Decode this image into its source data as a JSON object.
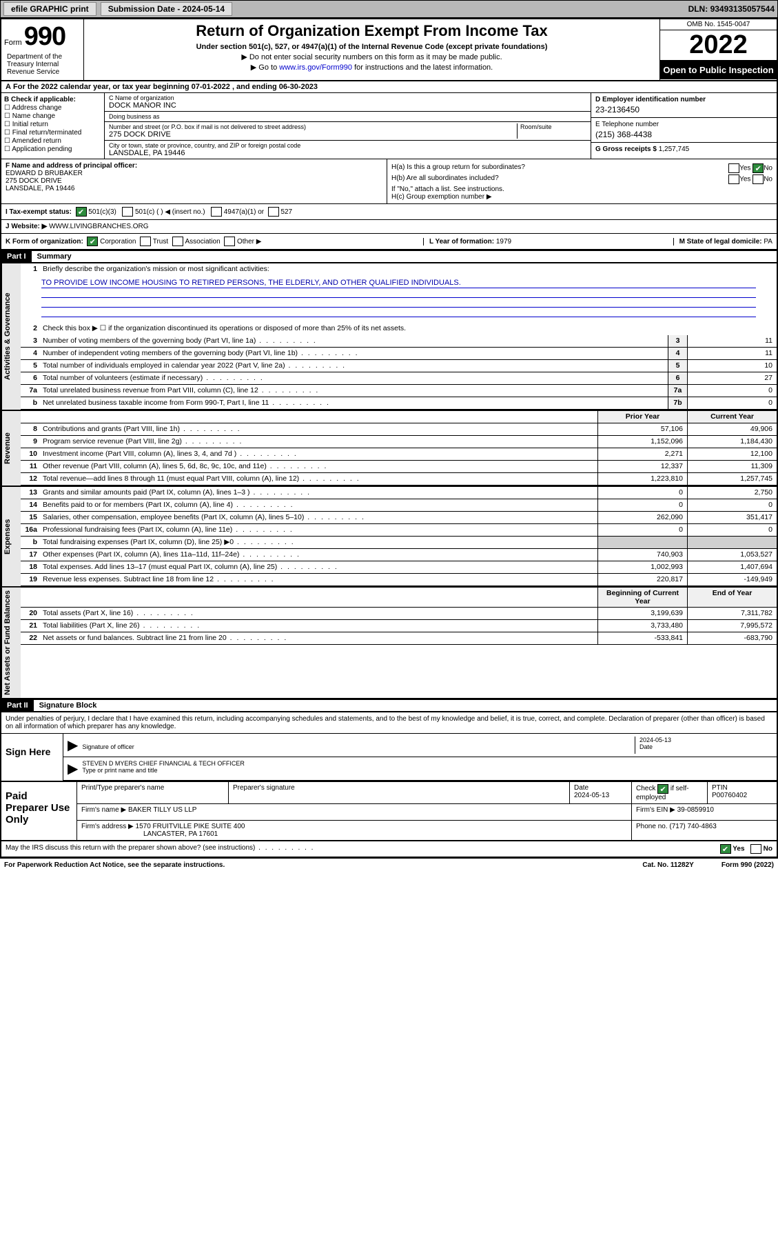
{
  "topbar": {
    "efile": "efile GRAPHIC print",
    "sub_label": "Submission Date - ",
    "sub_date": "2024-05-14",
    "dln_label": "DLN: ",
    "dln": "93493135057544"
  },
  "header": {
    "form_word": "Form",
    "form_num": "990",
    "title": "Return of Organization Exempt From Income Tax",
    "subtitle": "Under section 501(c), 527, or 4947(a)(1) of the Internal Revenue Code (except private foundations)",
    "note1": "Do not enter social security numbers on this form as it may be made public.",
    "note2_pre": "Go to ",
    "note2_link": "www.irs.gov/Form990",
    "note2_post": " for instructions and the latest information.",
    "omb": "OMB No. 1545-0047",
    "year": "2022",
    "open": "Open to Public Inspection",
    "dept": "Department of the Treasury Internal Revenue Service"
  },
  "rowA": "For the 2022 calendar year, or tax year beginning 07-01-2022   , and ending 06-30-2023",
  "checkB": {
    "title": "B Check if applicable:",
    "items": [
      "Address change",
      "Name change",
      "Initial return",
      "Final return/terminated",
      "Amended return",
      "Application pending"
    ]
  },
  "colC": {
    "name_label": "C Name of organization",
    "name": "DOCK MANOR INC",
    "dba_label": "Doing business as",
    "dba": "",
    "street_label": "Number and street (or P.O. box if mail is not delivered to street address)",
    "room_label": "Room/suite",
    "street": "275 DOCK DRIVE",
    "city_label": "City or town, state or province, country, and ZIP or foreign postal code",
    "city": "LANSDALE, PA  19446"
  },
  "colD": {
    "d_label": "D Employer identification number",
    "d_val": "23-2136450",
    "e_label": "E Telephone number",
    "e_val": "(215) 368-4438",
    "g_label": "G Gross receipts $ ",
    "g_val": "1,257,745"
  },
  "rowF": {
    "label": "F Name and address of principal officer:",
    "name": "EDWARD D BRUBAKER",
    "addr1": "275 DOCK DRIVE",
    "addr2": "LANSDALE, PA  19446"
  },
  "rowH": {
    "ha": "H(a)  Is this a group return for subordinates?",
    "hb": "H(b)  Are all subordinates included?",
    "hb_note": "If \"No,\" attach a list. See instructions.",
    "hc": "H(c)  Group exemption number ▶",
    "yes": "Yes",
    "no": "No"
  },
  "rowI": {
    "label": "I   Tax-exempt status:",
    "opt1": "501(c)(3)",
    "opt2": "501(c) (  ) ◀ (insert no.)",
    "opt3": "4947(a)(1) or",
    "opt4": "527"
  },
  "rowJ": {
    "label": "J   Website: ▶",
    "val": "WWW.LIVINGBRANCHES.ORG"
  },
  "rowK": {
    "label": "K Form of organization:",
    "corp": "Corporation",
    "trust": "Trust",
    "assoc": "Association",
    "other": "Other ▶",
    "l_label": "L Year of formation: ",
    "l_val": "1979",
    "m_label": "M State of legal domicile: ",
    "m_val": "PA"
  },
  "part1": {
    "hdr": "Part I",
    "title": "Summary",
    "q1": "Briefly describe the organization's mission or most significant activities:",
    "mission": "TO PROVIDE LOW INCOME HOUSING TO RETIRED PERSONS, THE ELDERLY, AND OTHER QUALIFIED INDIVIDUALS.",
    "q2": "Check this box ▶ ☐  if the organization discontinued its operations or disposed of more than 25% of its net assets.",
    "rows_gov": [
      {
        "n": "3",
        "d": "Number of voting members of the governing body (Part VI, line 1a)",
        "b": "3",
        "v": "11"
      },
      {
        "n": "4",
        "d": "Number of independent voting members of the governing body (Part VI, line 1b)",
        "b": "4",
        "v": "11"
      },
      {
        "n": "5",
        "d": "Total number of individuals employed in calendar year 2022 (Part V, line 2a)",
        "b": "5",
        "v": "10"
      },
      {
        "n": "6",
        "d": "Total number of volunteers (estimate if necessary)",
        "b": "6",
        "v": "27"
      },
      {
        "n": "7a",
        "d": "Total unrelated business revenue from Part VIII, column (C), line 12",
        "b": "7a",
        "v": "0"
      },
      {
        "n": "b",
        "d": "Net unrelated business taxable income from Form 990-T, Part I, line 11",
        "b": "7b",
        "v": "0"
      }
    ],
    "col_hdr_prior": "Prior Year",
    "col_hdr_curr": "Current Year",
    "rows_rev": [
      {
        "n": "8",
        "d": "Contributions and grants (Part VIII, line 1h)",
        "p": "57,106",
        "c": "49,906"
      },
      {
        "n": "9",
        "d": "Program service revenue (Part VIII, line 2g)",
        "p": "1,152,096",
        "c": "1,184,430"
      },
      {
        "n": "10",
        "d": "Investment income (Part VIII, column (A), lines 3, 4, and 7d )",
        "p": "2,271",
        "c": "12,100"
      },
      {
        "n": "11",
        "d": "Other revenue (Part VIII, column (A), lines 5, 6d, 8c, 9c, 10c, and 11e)",
        "p": "12,337",
        "c": "11,309"
      },
      {
        "n": "12",
        "d": "Total revenue—add lines 8 through 11 (must equal Part VIII, column (A), line 12)",
        "p": "1,223,810",
        "c": "1,257,745"
      }
    ],
    "rows_exp": [
      {
        "n": "13",
        "d": "Grants and similar amounts paid (Part IX, column (A), lines 1–3 )",
        "p": "0",
        "c": "2,750"
      },
      {
        "n": "14",
        "d": "Benefits paid to or for members (Part IX, column (A), line 4)",
        "p": "0",
        "c": "0"
      },
      {
        "n": "15",
        "d": "Salaries, other compensation, employee benefits (Part IX, column (A), lines 5–10)",
        "p": "262,090",
        "c": "351,417"
      },
      {
        "n": "16a",
        "d": "Professional fundraising fees (Part IX, column (A), line 11e)",
        "p": "0",
        "c": "0"
      },
      {
        "n": "b",
        "d": "Total fundraising expenses (Part IX, column (D), line 25) ▶0",
        "p": "",
        "c": "",
        "shaded": true
      },
      {
        "n": "17",
        "d": "Other expenses (Part IX, column (A), lines 11a–11d, 11f–24e)",
        "p": "740,903",
        "c": "1,053,527"
      },
      {
        "n": "18",
        "d": "Total expenses. Add lines 13–17 (must equal Part IX, column (A), line 25)",
        "p": "1,002,993",
        "c": "1,407,694"
      },
      {
        "n": "19",
        "d": "Revenue less expenses. Subtract line 18 from line 12",
        "p": "220,817",
        "c": "-149,949"
      }
    ],
    "col_hdr_beg": "Beginning of Current Year",
    "col_hdr_end": "End of Year",
    "rows_net": [
      {
        "n": "20",
        "d": "Total assets (Part X, line 16)",
        "p": "3,199,639",
        "c": "7,311,782"
      },
      {
        "n": "21",
        "d": "Total liabilities (Part X, line 26)",
        "p": "3,733,480",
        "c": "7,995,572"
      },
      {
        "n": "22",
        "d": "Net assets or fund balances. Subtract line 21 from line 20",
        "p": "-533,841",
        "c": "-683,790"
      }
    ],
    "side_gov": "Activities & Governance",
    "side_rev": "Revenue",
    "side_exp": "Expenses",
    "side_net": "Net Assets or Fund Balances"
  },
  "part2": {
    "hdr": "Part II",
    "title": "Signature Block",
    "decl": "Under penalties of perjury, I declare that I have examined this return, including accompanying schedules and statements, and to the best of my knowledge and belief, it is true, correct, and complete. Declaration of preparer (other than officer) is based on all information of which preparer has any knowledge.",
    "sign_here": "Sign Here",
    "sig_officer": "Signature of officer",
    "sig_date": "2024-05-13",
    "date_lbl": "Date",
    "officer_name": "STEVEN D MYERS CHIEF FINANCIAL & TECH OFFICER",
    "type_name": "Type or print name and title",
    "paid_prep": "Paid Preparer Use Only",
    "prep_name_lbl": "Print/Type preparer's name",
    "prep_sig_lbl": "Preparer's signature",
    "prep_date_lbl": "Date",
    "prep_date": "2024-05-13",
    "check_self": "Check ☑ if self-employed",
    "ptin_lbl": "PTIN",
    "ptin": "P00760402",
    "firm_name_lbl": "Firm's name    ▶",
    "firm_name": "BAKER TILLY US LLP",
    "firm_ein_lbl": "Firm's EIN ▶",
    "firm_ein": "39-0859910",
    "firm_addr_lbl": "Firm's address ▶",
    "firm_addr1": "1570 FRUITVILLE PIKE SUITE 400",
    "firm_addr2": "LANCASTER, PA  17601",
    "phone_lbl": "Phone no. ",
    "phone": "(717) 740-4863",
    "discuss": "May the IRS discuss this return with the preparer shown above? (see instructions)",
    "yes": "Yes",
    "no": "No"
  },
  "footer": {
    "pra": "For Paperwork Reduction Act Notice, see the separate instructions.",
    "cat": "Cat. No. 11282Y",
    "form": "Form 990 (2022)"
  }
}
